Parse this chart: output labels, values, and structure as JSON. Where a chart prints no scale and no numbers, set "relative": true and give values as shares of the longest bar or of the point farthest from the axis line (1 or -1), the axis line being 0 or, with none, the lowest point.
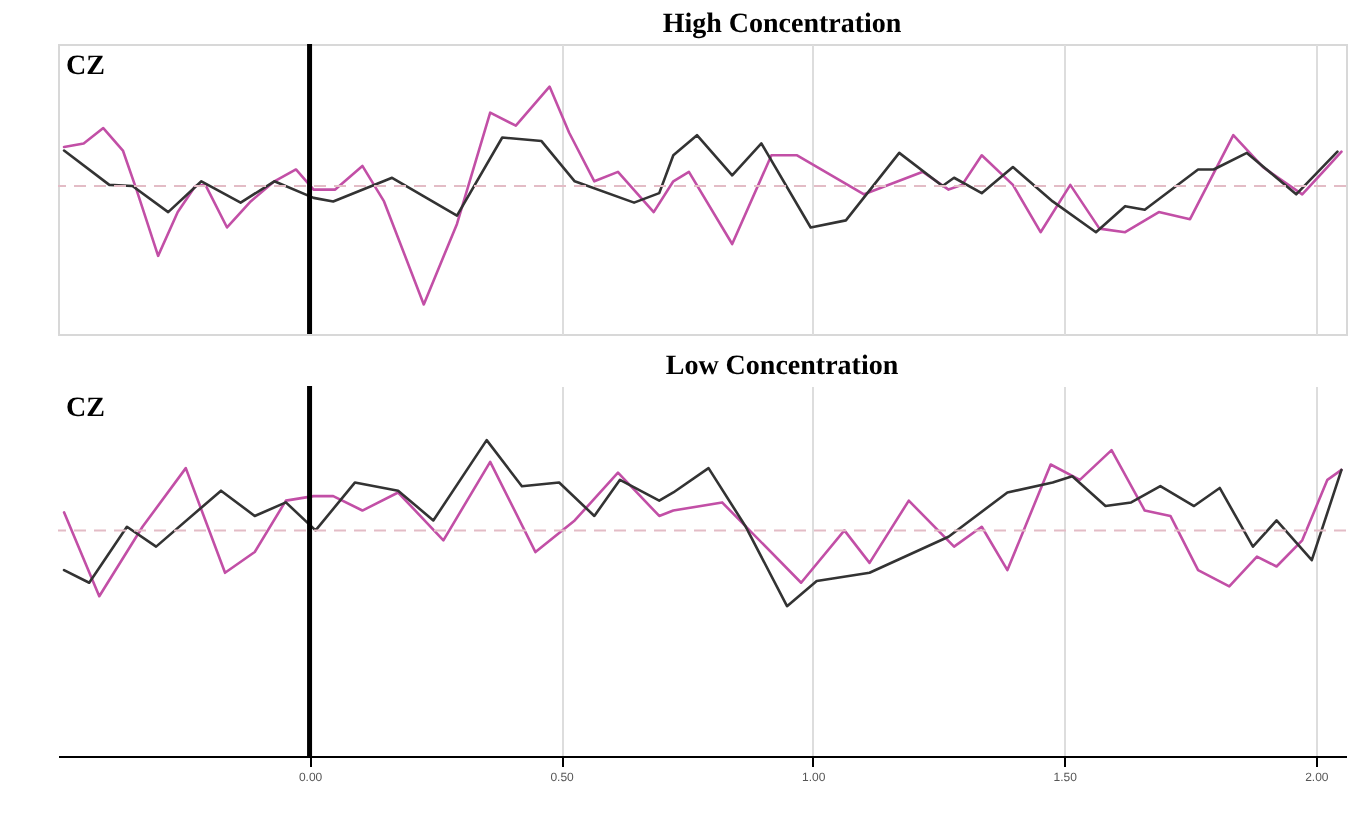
{
  "chart_data": [
    {
      "type": "line",
      "title": "High Concentration",
      "annotations": [
        "CZ"
      ],
      "relative": true,
      "xlim": [
        -0.5,
        2.06
      ],
      "xticks": [
        {
          "value": 0,
          "label": null
        },
        {
          "value": 0.5,
          "label": null
        },
        {
          "value": 1,
          "label": null
        },
        {
          "value": 1.5,
          "label": null
        },
        {
          "value": 2,
          "label": null
        }
      ],
      "grid": "x",
      "tick_labels": false,
      "ref_lines": [
        {
          "axis": "x",
          "value": 0,
          "color": "#000000",
          "line_style": "solid"
        },
        {
          "axis": "y",
          "value": 0,
          "color": "#e3bcc6",
          "line_style": "dashed"
        }
      ],
      "series": [
        {
          "color": "#c24fa6",
          "x": [
            -0.488,
            -0.449,
            -0.41,
            -0.371,
            -0.344,
            -0.301,
            -0.262,
            -0.227,
            -0.207,
            -0.164,
            -0.117,
            -0.07,
            -0.027,
            0.008,
            0.051,
            0.105,
            0.148,
            0.227,
            0.293,
            0.359,
            0.41,
            0.477,
            0.516,
            0.566,
            0.613,
            0.684,
            0.723,
            0.754,
            0.84,
            0.918,
            0.969,
            1.102,
            1.219,
            1.27,
            1.297,
            1.336,
            1.398,
            1.453,
            1.512,
            1.57,
            1.621,
            1.688,
            1.75,
            1.836,
            1.895,
            1.973,
            2.023,
            2.051
          ],
          "values": [
            0.33,
            0.36,
            0.49,
            0.3,
            -0.03,
            -0.59,
            -0.22,
            0,
            0.01,
            -0.35,
            -0.13,
            0.04,
            0.14,
            -0.03,
            -0.03,
            0.17,
            -0.13,
            -1,
            -0.32,
            0.62,
            0.51,
            0.84,
            0.45,
            0.04,
            0.12,
            -0.22,
            0.04,
            0.12,
            -0.49,
            0.26,
            0.26,
            -0.07,
            0.12,
            -0.03,
            0.01,
            0.26,
            0.01,
            -0.39,
            0.01,
            -0.36,
            -0.39,
            -0.22,
            -0.28,
            0.43,
            0.16,
            -0.07,
            0.16,
            0.29
          ]
        },
        {
          "color": "#333333",
          "x": [
            -0.488,
            -0.398,
            -0.352,
            -0.281,
            -0.215,
            -0.137,
            -0.07,
            0.008,
            0.047,
            0.164,
            0.293,
            0.383,
            0.461,
            0.527,
            0.645,
            0.695,
            0.723,
            0.77,
            0.84,
            0.898,
            0.996,
            1.066,
            1.172,
            1.258,
            1.281,
            1.336,
            1.398,
            1.477,
            1.563,
            1.621,
            1.66,
            1.766,
            1.797,
            1.863,
            1.961,
            2.043
          ],
          "values": [
            0.3,
            0.01,
            0,
            -0.22,
            0.04,
            -0.14,
            0.04,
            -0.1,
            -0.13,
            0.07,
            -0.25,
            0.41,
            0.38,
            0.04,
            -0.14,
            -0.06,
            0.26,
            0.43,
            0.09,
            0.36,
            -0.35,
            -0.29,
            0.28,
            0,
            0.07,
            -0.06,
            0.16,
            -0.13,
            -0.39,
            -0.17,
            -0.2,
            0.14,
            0.14,
            0.28,
            -0.07,
            0.29
          ]
        }
      ]
    },
    {
      "type": "line",
      "title": "Low Concentration",
      "annotations": [
        "CZ"
      ],
      "relative": true,
      "xlim": [
        -0.5,
        2.06
      ],
      "xticks": [
        {
          "value": 0,
          "label": "0.00"
        },
        {
          "value": 0.5,
          "label": "0.50"
        },
        {
          "value": 1,
          "label": "1.00"
        },
        {
          "value": 1.5,
          "label": "1.50"
        },
        {
          "value": 2,
          "label": "2.00"
        }
      ],
      "grid": "x",
      "tick_labels": "x",
      "ref_lines": [
        {
          "axis": "x",
          "value": 0,
          "color": "#000000",
          "line_style": "solid"
        },
        {
          "axis": "y",
          "value": 0,
          "color": "#e3bcc6",
          "line_style": "dashed"
        }
      ],
      "series": [
        {
          "color": "#c24fa6",
          "x": [
            -0.488,
            -0.418,
            -0.332,
            -0.246,
            -0.168,
            -0.109,
            -0.047,
            0.008,
            0.047,
            0.105,
            0.176,
            0.266,
            0.359,
            0.449,
            0.527,
            0.613,
            0.695,
            0.723,
            0.82,
            0.977,
            1.063,
            1.113,
            1.191,
            1.281,
            1.336,
            1.387,
            1.473,
            1.531,
            1.594,
            1.66,
            1.711,
            1.766,
            1.828,
            1.883,
            1.922,
            1.973,
            2.023,
            2.051
          ],
          "values": [
            0.2,
            -0.73,
            0.04,
            0.69,
            -0.47,
            -0.24,
            0.33,
            0.38,
            0.38,
            0.22,
            0.42,
            -0.11,
            0.76,
            -0.24,
            0.11,
            0.64,
            0.16,
            0.22,
            0.31,
            -0.58,
            0,
            -0.36,
            0.33,
            -0.18,
            0.04,
            -0.44,
            0.73,
            0.56,
            0.89,
            0.22,
            0.16,
            -0.44,
            -0.62,
            -0.29,
            -0.4,
            -0.11,
            0.56,
            0.67
          ]
        },
        {
          "color": "#333333",
          "x": [
            -0.488,
            -0.438,
            -0.363,
            -0.305,
            -0.176,
            -0.109,
            -0.047,
            0.012,
            0.09,
            0.176,
            0.246,
            0.352,
            0.422,
            0.496,
            0.566,
            0.617,
            0.695,
            0.723,
            0.793,
            0.867,
            0.949,
            1.008,
            1.113,
            1.27,
            1.387,
            1.477,
            1.516,
            1.582,
            1.633,
            1.691,
            1.758,
            1.809,
            1.875,
            1.922,
            1.992,
            2.051
          ],
          "values": [
            -0.44,
            -0.58,
            0.04,
            -0.18,
            0.44,
            0.16,
            0.31,
            0,
            0.53,
            0.44,
            0.11,
            1,
            0.49,
            0.53,
            0.16,
            0.56,
            0.33,
            0.42,
            0.69,
            0.04,
            -0.84,
            -0.56,
            -0.47,
            -0.07,
            0.42,
            0.53,
            0.6,
            0.27,
            0.31,
            0.49,
            0.27,
            0.47,
            -0.18,
            0.11,
            -0.33,
            0.67
          ]
        }
      ]
    }
  ]
}
